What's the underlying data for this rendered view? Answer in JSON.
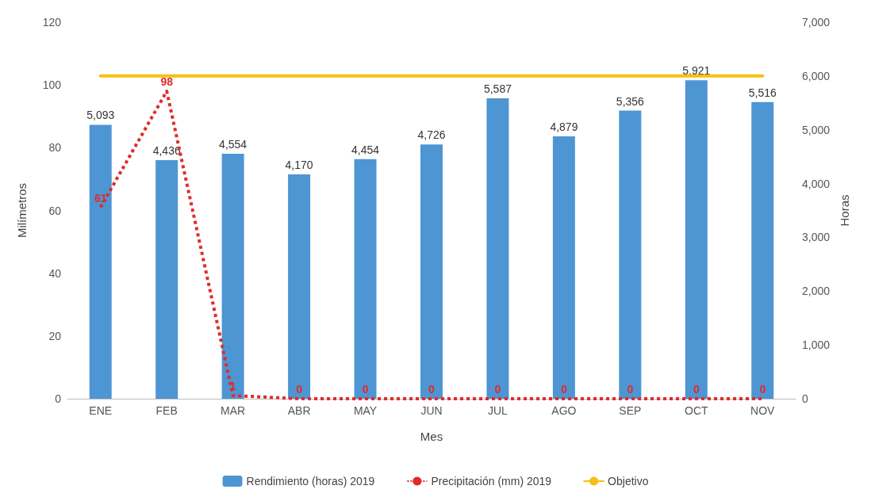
{
  "chart_data": {
    "type": "bar",
    "xlabel": "Mes",
    "ylabel": "Milímetros",
    "y2label": "Horas",
    "categories": [
      "ENE",
      "FEB",
      "MAR",
      "ABR",
      "MAY",
      "JUN",
      "JUL",
      "AGO",
      "SEP",
      "OCT",
      "NOV"
    ],
    "series": [
      {
        "name": "Rendimiento (horas) 2019",
        "axis": "y2",
        "color": "#4e95d4",
        "values": [
          5093,
          4436,
          4554,
          4170,
          4454,
          4726,
          5587,
          4879,
          5356,
          5921,
          5516
        ],
        "value_labels": [
          "5,093",
          "4,436",
          "4,554",
          "4,170",
          "4,454",
          "4,726",
          "5,587",
          "4,879",
          "5,356",
          "5,921",
          "5,516"
        ]
      },
      {
        "name": "Precipitación (mm) 2019",
        "type": "line",
        "color": "#e02b2b",
        "line_style": "dotted",
        "marker": "none",
        "values": [
          61,
          98,
          1,
          0,
          0,
          0,
          0,
          0,
          0,
          0,
          0
        ],
        "value_labels": [
          "61",
          "98",
          "1",
          "0",
          "0",
          "0",
          "0",
          "0",
          "0",
          "0",
          "0"
        ]
      },
      {
        "name": "Objetivo",
        "type": "line",
        "axis": "y2",
        "color": "#f5bf14",
        "line_style": "solid",
        "marker": "none",
        "values": [
          6000,
          6000,
          6000,
          6000,
          6000,
          6000,
          6000,
          6000,
          6000,
          6000,
          6000
        ]
      }
    ],
    "ylim": [
      0,
      120
    ],
    "yticks": [
      0,
      20,
      40,
      60,
      80,
      100,
      120
    ],
    "y2lim": [
      0,
      7000
    ],
    "y2ticks": [
      {
        "value": 0,
        "label": "0"
      },
      {
        "value": 1000,
        "label": "1,000"
      },
      {
        "value": 2000,
        "label": "2,000"
      },
      {
        "value": 3000,
        "label": "3,000"
      },
      {
        "value": 4000,
        "label": "4,000"
      },
      {
        "value": 5000,
        "label": "5,000"
      },
      {
        "value": 6000,
        "label": "6,000"
      },
      {
        "value": 7000,
        "label": "7,000"
      }
    ],
    "grid": false,
    "legend": "bottom"
  }
}
